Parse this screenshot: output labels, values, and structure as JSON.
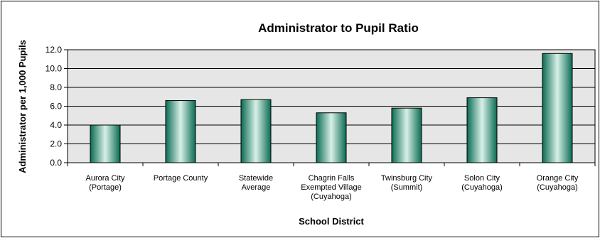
{
  "chart_data": {
    "type": "bar",
    "title": "Administrator to Pupil Ratio",
    "xlabel": "School District",
    "ylabel": "Administrator per 1,000 Pupils",
    "ylim": [
      0,
      12
    ],
    "yticks": [
      "0.0",
      "2.0",
      "4.0",
      "6.0",
      "8.0",
      "10.0",
      "12.0"
    ],
    "grid": true,
    "legend": "none",
    "categories": [
      [
        "Aurora City",
        "(Portage)"
      ],
      [
        "Portage County"
      ],
      [
        "Statewide",
        "Average"
      ],
      [
        "Chagrin Falls",
        "Exempted Village",
        "(Cuyahoga)"
      ],
      [
        "Twinsburg City",
        "(Summit)"
      ],
      [
        "Solon City",
        "(Cuyahoga)"
      ],
      [
        "Orange City",
        "(Cuyahoga)"
      ]
    ],
    "values": [
      4.0,
      6.6,
      6.7,
      5.3,
      5.8,
      6.9,
      11.6
    ],
    "colors": {
      "bar_dark": "#0a6b52",
      "bar_light": "#d8f0e8",
      "plot_bg": "#e6e6e6"
    }
  }
}
